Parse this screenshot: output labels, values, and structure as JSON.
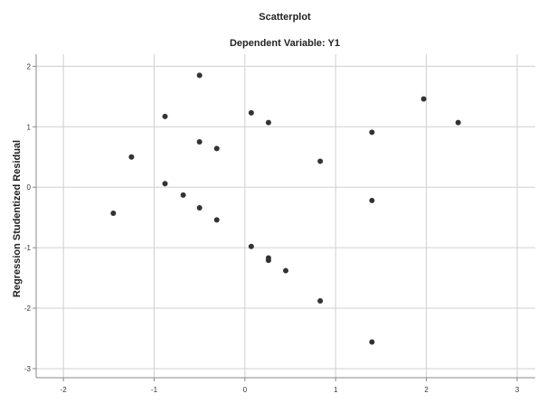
{
  "chart_data": {
    "type": "scatter",
    "title": "Scatterplot",
    "subtitle": "Dependent Variable: Y1",
    "xlabel": "",
    "ylabel": "Regression Studentized Residual",
    "xlim": [
      -2.3,
      3.2
    ],
    "ylim": [
      -3.15,
      2.2
    ],
    "xticks": [
      -2,
      -1,
      0,
      1,
      2,
      3
    ],
    "yticks": [
      2,
      1,
      0,
      -1,
      -2,
      -3
    ],
    "xtick_labels": [
      "-2",
      "-1",
      "0",
      "1",
      "2",
      "3"
    ],
    "ytick_labels": [
      "2",
      "1",
      "0",
      "-1",
      "-2",
      "-3"
    ],
    "grid": true,
    "point_color": "#333333",
    "points": [
      {
        "x": -1.45,
        "y": -0.43
      },
      {
        "x": -1.25,
        "y": 0.5
      },
      {
        "x": -0.88,
        "y": 1.17
      },
      {
        "x": -0.88,
        "y": 0.06
      },
      {
        "x": -0.68,
        "y": -0.13
      },
      {
        "x": -0.5,
        "y": 1.85
      },
      {
        "x": -0.5,
        "y": 0.75
      },
      {
        "x": -0.5,
        "y": -0.34
      },
      {
        "x": -0.31,
        "y": 0.64
      },
      {
        "x": -0.31,
        "y": -0.54
      },
      {
        "x": 0.07,
        "y": 1.23
      },
      {
        "x": 0.07,
        "y": -0.98
      },
      {
        "x": 0.26,
        "y": 1.07
      },
      {
        "x": 0.26,
        "y": -1.17
      },
      {
        "x": 0.26,
        "y": -1.21
      },
      {
        "x": 0.45,
        "y": -1.38
      },
      {
        "x": 0.83,
        "y": 0.43
      },
      {
        "x": 0.83,
        "y": -1.88
      },
      {
        "x": 1.4,
        "y": 0.91
      },
      {
        "x": 1.4,
        "y": -0.22
      },
      {
        "x": 1.4,
        "y": -2.56
      },
      {
        "x": 1.97,
        "y": 1.46
      },
      {
        "x": 2.35,
        "y": 1.07
      }
    ]
  }
}
